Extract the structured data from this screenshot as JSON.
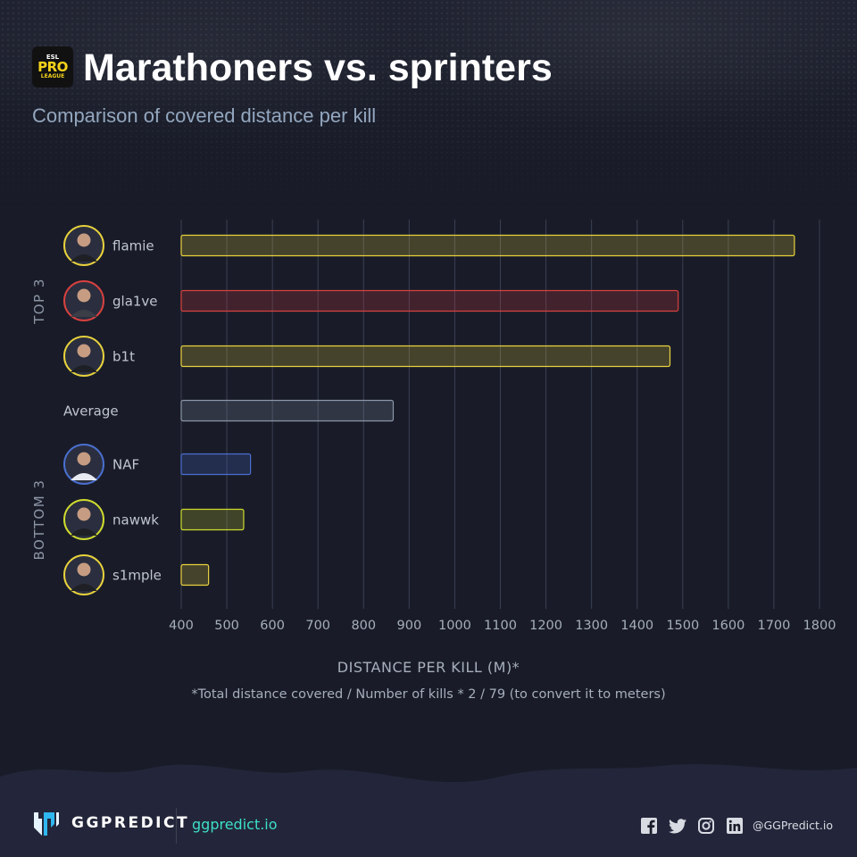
{
  "header": {
    "league_logo": {
      "icon": "esl-pro-league-logo-icon",
      "text_top": "ESL",
      "text_mid": "PRO",
      "text_bottom": "LEAGUE"
    },
    "title": "Marathoners vs. sprinters",
    "subtitle": "Comparison of covered distance per kill"
  },
  "chart_data": {
    "type": "bar",
    "orientation": "horizontal",
    "groups": [
      {
        "label": "TOP 3",
        "members": [
          "flamie",
          "gla1ve",
          "b1t"
        ]
      },
      {
        "label": "BOTTOM 3",
        "members": [
          "NAF",
          "nawwk",
          "s1mple"
        ]
      }
    ],
    "categories": [
      "flamie",
      "gla1ve",
      "b1t",
      "Average",
      "NAF",
      "nawwk",
      "s1mple"
    ],
    "values": [
      1745,
      1490,
      1472,
      865,
      552,
      537,
      460
    ],
    "bar_colors": [
      "#e8d23d",
      "#d8413f",
      "#e8d23d",
      "#8a96a8",
      "#4a6fd0",
      "#cfdb2e",
      "#e8d23d"
    ],
    "avatars": [
      {
        "player": "flamie",
        "icon": "player-avatar-icon",
        "ring_color": "#e8d23d"
      },
      {
        "player": "gla1ve",
        "icon": "player-avatar-icon",
        "ring_color": "#d8413f"
      },
      {
        "player": "b1t",
        "icon": "player-avatar-icon",
        "ring_color": "#e8d23d"
      },
      null,
      {
        "player": "NAF",
        "icon": "player-avatar-icon",
        "ring_color": "#4a6fd0"
      },
      {
        "player": "nawwk",
        "icon": "player-avatar-icon",
        "ring_color": "#cfdb2e"
      },
      {
        "player": "s1mple",
        "icon": "player-avatar-icon",
        "ring_color": "#e8d23d"
      }
    ],
    "xlim": [
      400,
      1800
    ],
    "xticks": [
      400,
      500,
      600,
      700,
      800,
      900,
      1000,
      1100,
      1200,
      1300,
      1400,
      1500,
      1600,
      1700,
      1800
    ],
    "xlabel": "DISTANCE PER KILL (M)*",
    "footnote": "*Total distance covered / Number of kills * 2 / 79 (to convert it to meters)",
    "grid": "vertical"
  },
  "footer": {
    "brand_icon": "ggpredict-logo-icon",
    "brand_name": "GGPREDICT",
    "site": "ggpredict.io",
    "social_icons": [
      "facebook-icon",
      "twitter-icon",
      "instagram-icon",
      "linkedin-icon"
    ],
    "handle": "@GGPredict.io"
  }
}
